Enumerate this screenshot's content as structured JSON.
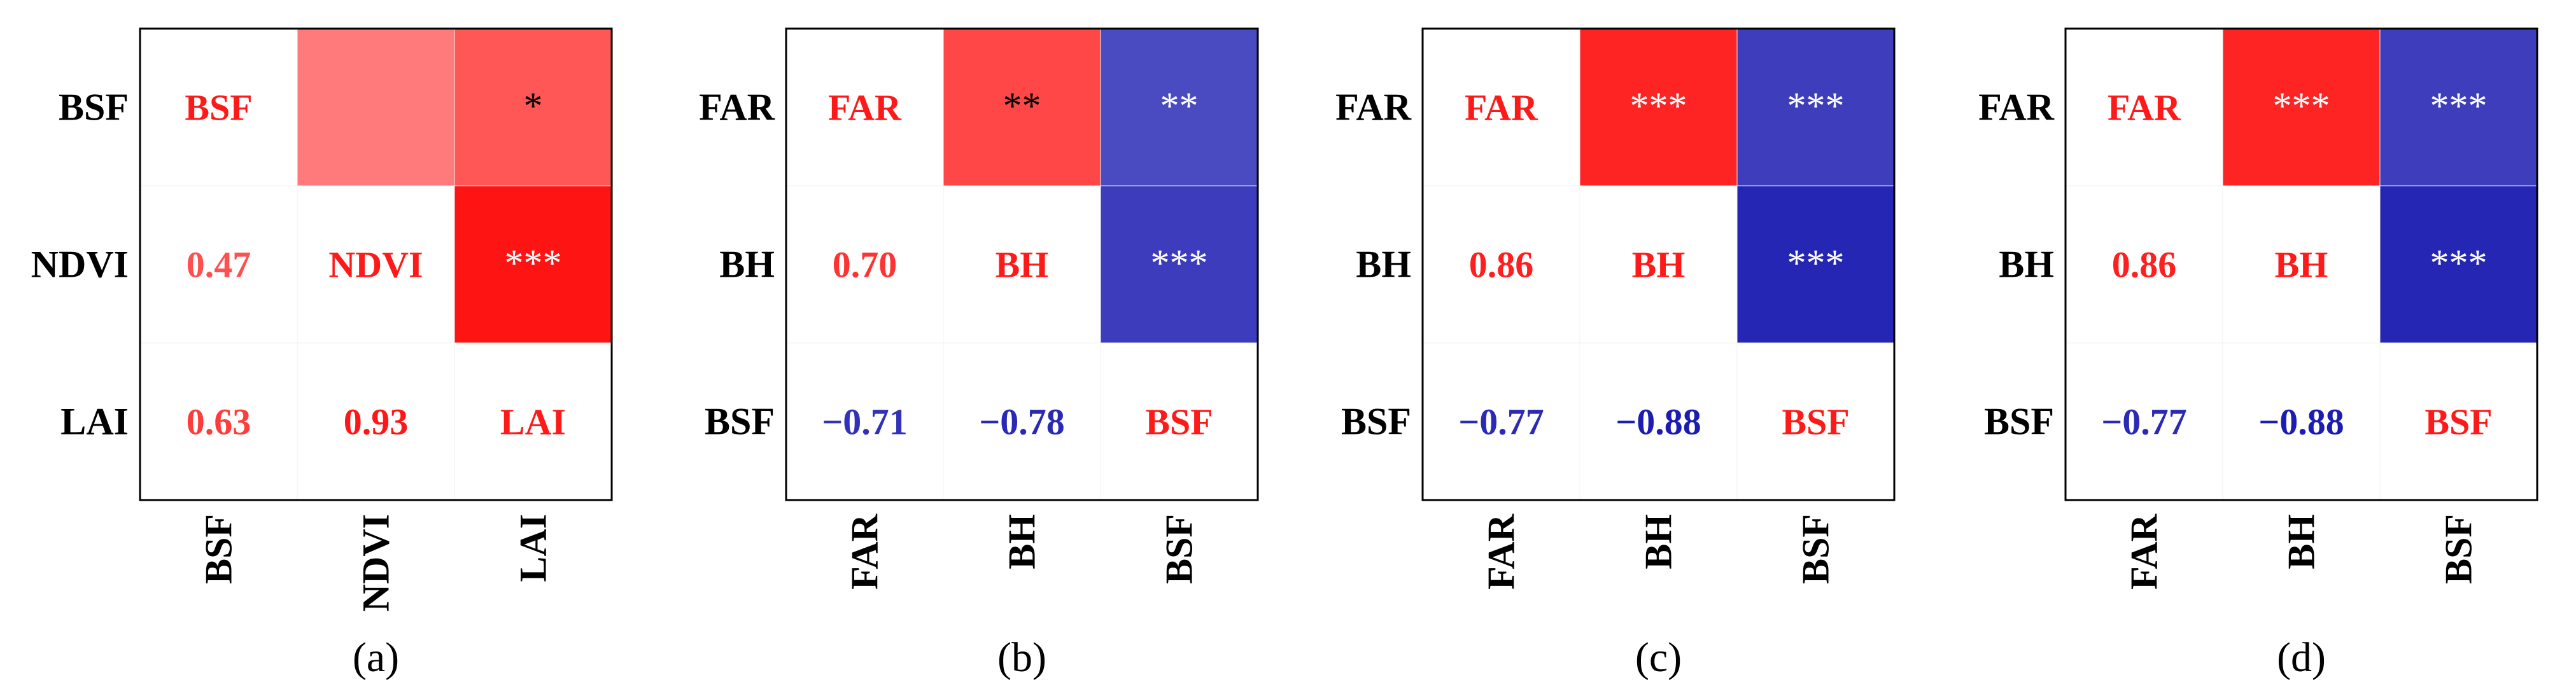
{
  "chart_data": [
    {
      "type": "heatmap",
      "panel_label": "(a)",
      "variables": [
        "BSF",
        "NDVI",
        "LAI"
      ],
      "y_tick_labels": [
        "BSF",
        "NDVI",
        "LAI"
      ],
      "x_tick_labels": [
        "BSF",
        "NDVI",
        "LAI"
      ],
      "correlations": [
        [
          1,
          0.47,
          0.63
        ],
        [
          0.47,
          1,
          0.93
        ],
        [
          0.63,
          0.93,
          1
        ]
      ],
      "lower_triangle_text": [
        [
          "0.47"
        ],
        [
          "0.63",
          "0.93"
        ]
      ],
      "upper_triangle_significance": [
        [
          "",
          "*"
        ],
        [
          "***"
        ]
      ]
    },
    {
      "type": "heatmap",
      "panel_label": "(b)",
      "variables": [
        "FAR",
        "BH",
        "BSF"
      ],
      "y_tick_labels": [
        "FAR",
        "BH",
        "BSF"
      ],
      "x_tick_labels": [
        "FAR",
        "BH",
        "BSF"
      ],
      "correlations": [
        [
          1,
          0.7,
          -0.71
        ],
        [
          0.7,
          1,
          -0.78
        ],
        [
          -0.71,
          -0.78,
          1
        ]
      ],
      "lower_triangle_text": [
        [
          "0.70"
        ],
        [
          "−0.71",
          "−0.78"
        ]
      ],
      "upper_triangle_significance": [
        [
          "**",
          "**"
        ],
        [
          "***"
        ]
      ]
    },
    {
      "type": "heatmap",
      "panel_label": "(c)",
      "variables": [
        "FAR",
        "BH",
        "BSF"
      ],
      "y_tick_labels": [
        "FAR",
        "BH",
        "BSF"
      ],
      "x_tick_labels": [
        "FAR",
        "BH",
        "BSF"
      ],
      "correlations": [
        [
          1,
          0.86,
          -0.77
        ],
        [
          0.86,
          1,
          -0.88
        ],
        [
          -0.77,
          -0.88,
          1
        ]
      ],
      "lower_triangle_text": [
        [
          "0.86"
        ],
        [
          "−0.77",
          "−0.88"
        ]
      ],
      "upper_triangle_significance": [
        [
          "***",
          "***"
        ],
        [
          "***"
        ]
      ]
    },
    {
      "type": "heatmap",
      "panel_label": "(d)",
      "variables": [
        "FAR",
        "BH",
        "BSF"
      ],
      "y_tick_labels": [
        "FAR",
        "BH",
        "BSF"
      ],
      "x_tick_labels": [
        "FAR",
        "BH",
        "BSF"
      ],
      "correlations": [
        [
          1,
          0.86,
          -0.77
        ],
        [
          0.86,
          1,
          -0.88
        ],
        [
          -0.77,
          -0.88,
          1
        ]
      ],
      "lower_triangle_text": [
        [
          "0.86"
        ],
        [
          "−0.77",
          "−0.88"
        ]
      ],
      "upper_triangle_significance": [
        [
          "***",
          "***"
        ],
        [
          "***"
        ]
      ]
    }
  ],
  "colors": {
    "positive": "#ff0000",
    "negative": "#0000a8",
    "diagonal_text": "#ff1a1a",
    "axis_text": "#000000"
  }
}
